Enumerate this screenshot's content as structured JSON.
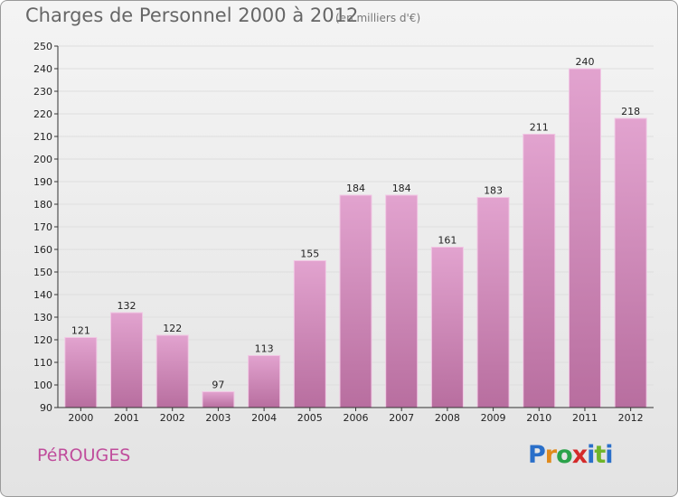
{
  "header": {
    "title": "Charges de Personnel 2000 à 2012",
    "subtitle": "(en milliers d'€)"
  },
  "footer": {
    "commune": "PéROUGES",
    "logo_letters": [
      "P",
      "r",
      "o",
      "x",
      "i",
      "t",
      "i"
    ],
    "logo_colors": [
      "#2a6fc9",
      "#e08a1c",
      "#2ba24a",
      "#d42a2a",
      "#2a6fc9",
      "#6fb52a",
      "#2a6fc9"
    ]
  },
  "colors": {
    "bar_top": "#e2a3cf",
    "bar_bottom": "#b86e9f",
    "bar_edge": "#f1c7e4",
    "grid": "#dedede",
    "axis": "#333333",
    "label": "#222222",
    "commune": "#c04d9c"
  },
  "chart_data": {
    "type": "bar",
    "categories": [
      "2000",
      "2001",
      "2002",
      "2003",
      "2004",
      "2005",
      "2006",
      "2007",
      "2008",
      "2009",
      "2010",
      "2011",
      "2012"
    ],
    "values": [
      121,
      132,
      122,
      97,
      113,
      155,
      184,
      184,
      161,
      183,
      211,
      240,
      218
    ],
    "data_labels": [
      "121",
      "132",
      "122",
      "97",
      "113",
      "155",
      "184",
      "184",
      "161",
      "183",
      "211",
      "240",
      "218"
    ],
    "title": "Charges de Personnel 2000 à 2012",
    "subtitle": "(en milliers d'€)",
    "xlabel": "",
    "ylabel": "",
    "ylim": [
      90,
      250
    ],
    "yticks": [
      90,
      100,
      110,
      120,
      130,
      140,
      150,
      160,
      170,
      180,
      190,
      200,
      210,
      220,
      230,
      240,
      250
    ],
    "grid": true,
    "legend": "none"
  }
}
